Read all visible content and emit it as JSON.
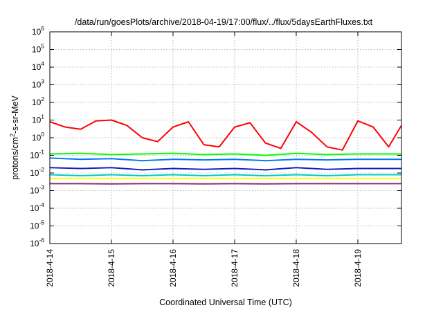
{
  "chart_data": {
    "type": "line",
    "title": "/data/run/goesPlots/archive/2018-04-19/17:00/flux/../flux/5daysEarthFluxes.txt",
    "xlabel": "Coordinated Universal Time (UTC)",
    "ylabel": {
      "prefix": "protons/cm",
      "sup": "2",
      "suffix": "-s-sr-MeV"
    },
    "y_scale": "log",
    "ylim": [
      1e-06,
      1000000.0
    ],
    "y_ticks": [
      {
        "value": 1e-06,
        "base": "10",
        "exp": "-6"
      },
      {
        "value": 1e-05,
        "base": "10",
        "exp": "-5"
      },
      {
        "value": 0.0001,
        "base": "10",
        "exp": "-4"
      },
      {
        "value": 0.001,
        "base": "10",
        "exp": "-3"
      },
      {
        "value": 0.01,
        "base": "10",
        "exp": "-2"
      },
      {
        "value": 0.1,
        "base": "10",
        "exp": "-1"
      },
      {
        "value": 1,
        "base": "10",
        "exp": "0"
      },
      {
        "value": 10,
        "base": "10",
        "exp": "1"
      },
      {
        "value": 100,
        "base": "10",
        "exp": "2"
      },
      {
        "value": 1000,
        "base": "10",
        "exp": "3"
      },
      {
        "value": 10000,
        "base": "10",
        "exp": "4"
      },
      {
        "value": 100000,
        "base": "10",
        "exp": "5"
      },
      {
        "value": 1000000,
        "base": "10",
        "exp": "6"
      }
    ],
    "xlim": [
      "2018-04-14 00:00",
      "2018-04-19 17:00"
    ],
    "x_ticks": [
      "2018-4-14",
      "2018-4-15",
      "2018-4-16",
      "2018-4-17",
      "2018-4-18",
      "2018-4-19"
    ],
    "grid": true,
    "series": [
      {
        "color": "#ff0000",
        "x": [
          "2018-04-14 00:00",
          "2018-04-14 06:00",
          "2018-04-14 12:00",
          "2018-04-14 18:00",
          "2018-04-15 00:00",
          "2018-04-15 06:00",
          "2018-04-15 12:00",
          "2018-04-15 18:00",
          "2018-04-16 00:00",
          "2018-04-16 06:00",
          "2018-04-16 12:00",
          "2018-04-16 18:00",
          "2018-04-17 00:00",
          "2018-04-17 06:00",
          "2018-04-17 12:00",
          "2018-04-17 18:00",
          "2018-04-18 00:00",
          "2018-04-18 06:00",
          "2018-04-18 12:00",
          "2018-04-18 18:00",
          "2018-04-19 00:00",
          "2018-04-19 06:00",
          "2018-04-19 12:00",
          "2018-04-19 17:00"
        ],
        "values": [
          8,
          4,
          3,
          9,
          10,
          5,
          1,
          0.6,
          4,
          8,
          0.4,
          0.3,
          4,
          7,
          0.5,
          0.25,
          8,
          2,
          0.3,
          0.2,
          9,
          4,
          0.3,
          5
        ]
      },
      {
        "color": "#00ff00",
        "x": [
          "2018-04-14 00:00",
          "2018-04-14 12:00",
          "2018-04-15 00:00",
          "2018-04-15 12:00",
          "2018-04-16 00:00",
          "2018-04-16 12:00",
          "2018-04-17 00:00",
          "2018-04-17 12:00",
          "2018-04-18 00:00",
          "2018-04-18 12:00",
          "2018-04-19 00:00",
          "2018-04-19 17:00"
        ],
        "values": [
          0.12,
          0.13,
          0.11,
          0.12,
          0.13,
          0.11,
          0.12,
          0.1,
          0.13,
          0.11,
          0.12,
          0.12
        ]
      },
      {
        "color": "#0078ff",
        "x": [
          "2018-04-14 00:00",
          "2018-04-14 12:00",
          "2018-04-15 00:00",
          "2018-04-15 12:00",
          "2018-04-16 00:00",
          "2018-04-16 12:00",
          "2018-04-17 00:00",
          "2018-04-17 12:00",
          "2018-04-18 00:00",
          "2018-04-18 12:00",
          "2018-04-19 00:00",
          "2018-04-19 17:00"
        ],
        "values": [
          0.07,
          0.06,
          0.065,
          0.05,
          0.06,
          0.055,
          0.06,
          0.05,
          0.06,
          0.055,
          0.06,
          0.06
        ]
      },
      {
        "color": "#1020c8",
        "x": [
          "2018-04-14 00:00",
          "2018-04-14 12:00",
          "2018-04-15 00:00",
          "2018-04-15 12:00",
          "2018-04-16 00:00",
          "2018-04-16 12:00",
          "2018-04-17 00:00",
          "2018-04-17 12:00",
          "2018-04-18 00:00",
          "2018-04-18 12:00",
          "2018-04-19 00:00",
          "2018-04-19 17:00"
        ],
        "values": [
          0.02,
          0.018,
          0.02,
          0.015,
          0.018,
          0.016,
          0.018,
          0.015,
          0.02,
          0.016,
          0.018,
          0.018
        ]
      },
      {
        "color": "#00c8c8",
        "x": [
          "2018-04-14 00:00",
          "2018-04-14 12:00",
          "2018-04-15 00:00",
          "2018-04-15 12:00",
          "2018-04-16 00:00",
          "2018-04-16 12:00",
          "2018-04-17 00:00",
          "2018-04-17 12:00",
          "2018-04-18 00:00",
          "2018-04-18 12:00",
          "2018-04-19 00:00",
          "2018-04-19 17:00"
        ],
        "values": [
          0.008,
          0.007,
          0.008,
          0.007,
          0.008,
          0.007,
          0.008,
          0.007,
          0.008,
          0.007,
          0.008,
          0.008
        ]
      },
      {
        "color": "#ffff00",
        "x": [
          "2018-04-14 00:00",
          "2018-04-14 12:00",
          "2018-04-15 00:00",
          "2018-04-15 12:00",
          "2018-04-16 00:00",
          "2018-04-16 12:00",
          "2018-04-17 00:00",
          "2018-04-17 12:00",
          "2018-04-18 00:00",
          "2018-04-18 12:00",
          "2018-04-19 00:00",
          "2018-04-19 17:00"
        ],
        "values": [
          0.005,
          0.005,
          0.005,
          0.005,
          0.005,
          0.005,
          0.005,
          0.005,
          0.005,
          0.005,
          0.005,
          0.005
        ]
      },
      {
        "color": "#8c2d6e",
        "x": [
          "2018-04-14 00:00",
          "2018-04-14 12:00",
          "2018-04-15 00:00",
          "2018-04-15 12:00",
          "2018-04-16 00:00",
          "2018-04-16 12:00",
          "2018-04-17 00:00",
          "2018-04-17 12:00",
          "2018-04-18 00:00",
          "2018-04-18 12:00",
          "2018-04-19 00:00",
          "2018-04-19 17:00"
        ],
        "values": [
          0.0025,
          0.0025,
          0.0024,
          0.0025,
          0.0025,
          0.0024,
          0.0025,
          0.0024,
          0.0025,
          0.0025,
          0.0025,
          0.0025
        ]
      }
    ]
  }
}
